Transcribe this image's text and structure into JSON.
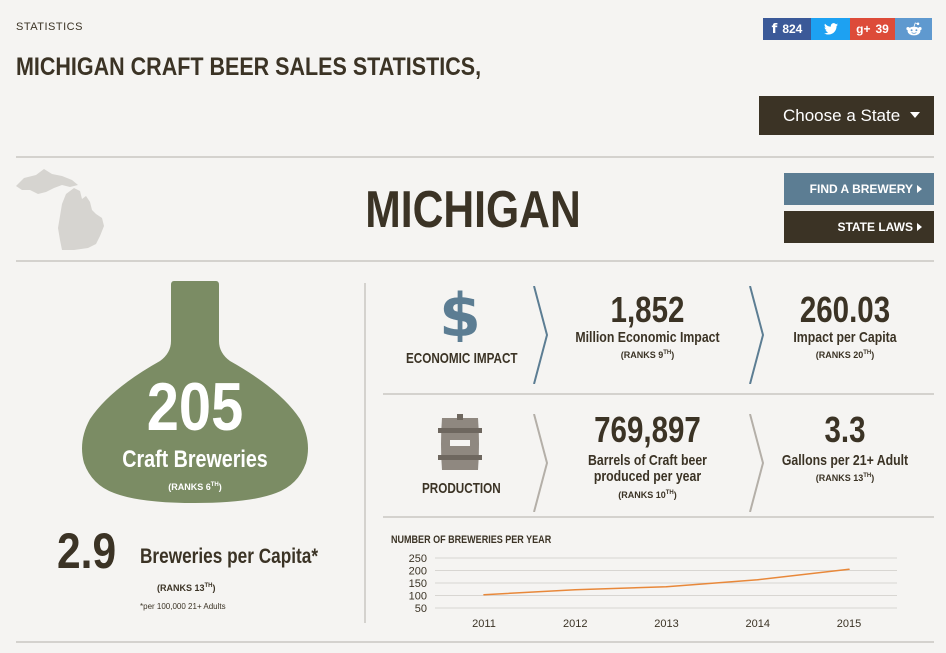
{
  "breadcrumb": "STATISTICS",
  "page_title": "MICHIGAN CRAFT BEER SALES STATISTICS,",
  "share": {
    "facebook": {
      "icon": "facebook-icon",
      "count": "824",
      "color": "#3b5998"
    },
    "twitter": {
      "icon": "twitter-icon",
      "color": "#1da1f2"
    },
    "googleplus": {
      "icon": "googleplus-icon",
      "count": "39",
      "color": "#dd4b39"
    },
    "reddit": {
      "icon": "reddit-icon",
      "color": "#5f99cf"
    }
  },
  "choose_state_label": "Choose a State",
  "state_name": "MICHIGAN",
  "find_brewery_label": "FIND A BREWERY",
  "state_laws_label": "STATE LAWS",
  "breweries": {
    "count": "205",
    "label": "Craft Breweries",
    "rank_prefix": "(RANKS 6",
    "rank_suffix": "TH",
    "rank_close": ")"
  },
  "per_capita": {
    "value": "2.9",
    "label": "Breweries per Capita*",
    "rank_prefix": "(RANKS 13",
    "rank_suffix": "TH",
    "rank_close": ")",
    "note": "*per 100,000 21+ Adults"
  },
  "economic_impact": {
    "category": "ECONOMIC IMPACT",
    "icon": "dollar-icon",
    "metric1": {
      "value": "1,852",
      "label": "Million Economic Impact",
      "rank_prefix": "(RANKS 9",
      "rank_suffix": "TH",
      "rank_close": ")"
    },
    "metric2": {
      "value": "260.03",
      "label": "Impact per Capita",
      "rank_prefix": "(RANKS 20",
      "rank_suffix": "TH",
      "rank_close": ")"
    }
  },
  "production": {
    "category": "PRODUCTION",
    "icon": "barrel-icon",
    "metric1": {
      "value": "769,897",
      "label": "Barrels of Craft beer produced per year",
      "rank_prefix": "(RANKS 10",
      "rank_suffix": "TH",
      "rank_close": ")"
    },
    "metric2": {
      "value": "3.3",
      "label": "Gallons per 21+ Adult",
      "rank_prefix": "(RANKS 13",
      "rank_suffix": "TH",
      "rank_close": ")"
    }
  },
  "colors": {
    "dark": "#3b3325",
    "bottle": "#7b8c64",
    "slate": "#5c7d93",
    "line": "#e8883a"
  },
  "chart_data": {
    "type": "line",
    "title": "NUMBER OF BREWERIES PER YEAR",
    "categories": [
      "2011",
      "2012",
      "2013",
      "2014",
      "2015"
    ],
    "values": [
      103,
      123,
      135,
      163,
      205
    ],
    "yticks": [
      50,
      100,
      150,
      200,
      250
    ],
    "ylim": [
      50,
      250
    ],
    "grid": true
  }
}
